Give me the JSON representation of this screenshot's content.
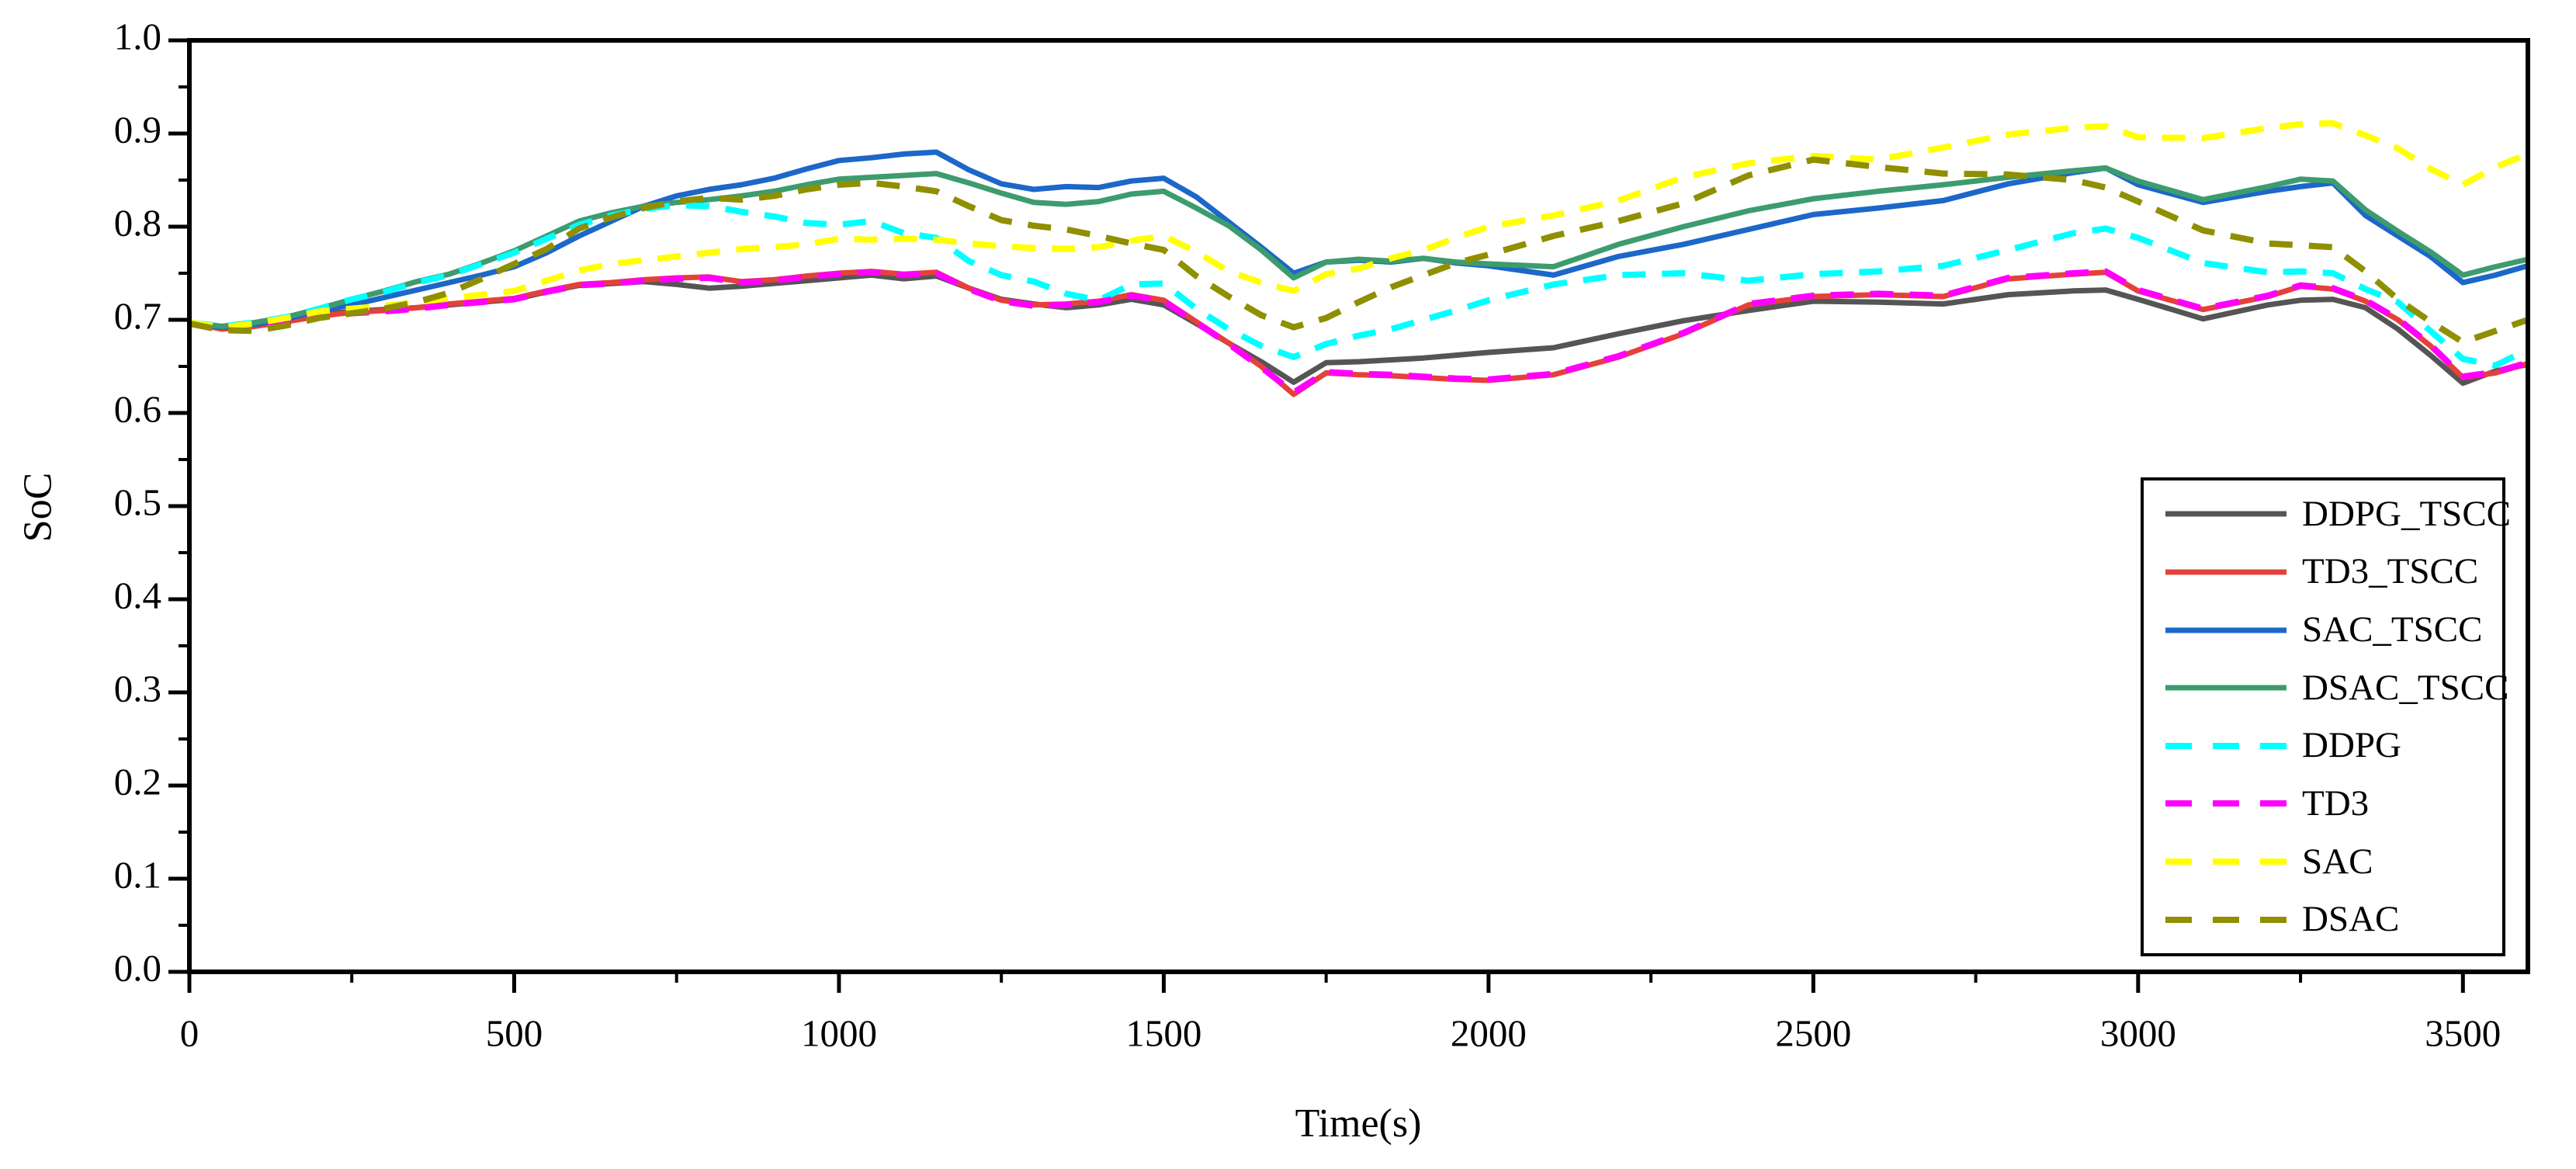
{
  "figure": {
    "background_color": "#ffffff"
  },
  "chart_data": {
    "type": "line",
    "title": "",
    "xlabel": "Time(s)",
    "ylabel": "SoC",
    "xlim": [
      0,
      3600
    ],
    "ylim": [
      0.0,
      1.0
    ],
    "grid": false,
    "legend_position": "lower right",
    "x_major_ticks": [
      0,
      500,
      1000,
      1500,
      2000,
      2500,
      3000,
      3500
    ],
    "x_tick_labels": [
      "0",
      "500",
      "1000",
      "1500",
      "2000",
      "2500",
      "3000",
      "3500"
    ],
    "x_minor_ticks": [
      250,
      750,
      1250,
      1750,
      2250,
      2750,
      3250
    ],
    "y_major_ticks": [
      0.0,
      0.1,
      0.2,
      0.3,
      0.4,
      0.5,
      0.6,
      0.7,
      0.8,
      0.9,
      1.0
    ],
    "y_tick_labels": [
      "0.0",
      "0.1",
      "0.2",
      "0.3",
      "0.4",
      "0.5",
      "0.6",
      "0.7",
      "0.8",
      "0.9",
      "1.0"
    ],
    "y_minor_ticks": [
      0.05,
      0.15,
      0.25,
      0.35,
      0.45,
      0.55,
      0.65,
      0.75,
      0.85,
      0.95
    ],
    "x": [
      0,
      50,
      100,
      150,
      200,
      250,
      300,
      350,
      400,
      450,
      500,
      550,
      600,
      650,
      700,
      750,
      800,
      850,
      900,
      950,
      1000,
      1050,
      1100,
      1150,
      1200,
      1250,
      1300,
      1350,
      1400,
      1450,
      1500,
      1550,
      1600,
      1650,
      1700,
      1750,
      1800,
      1850,
      1900,
      1950,
      2000,
      2100,
      2200,
      2300,
      2400,
      2500,
      2600,
      2700,
      2800,
      2900,
      2950,
      3000,
      3100,
      3200,
      3250,
      3300,
      3350,
      3400,
      3450,
      3500,
      3550,
      3600
    ],
    "series": [
      {
        "name": "DDPG_TSCC",
        "color": "#555555",
        "style": "solid",
        "values": [
          0.697,
          0.691,
          0.694,
          0.699,
          0.706,
          0.709,
          0.711,
          0.713,
          0.716,
          0.719,
          0.722,
          0.73,
          0.737,
          0.739,
          0.741,
          0.738,
          0.734,
          0.736,
          0.739,
          0.742,
          0.745,
          0.748,
          0.744,
          0.747,
          0.734,
          0.722,
          0.717,
          0.713,
          0.716,
          0.722,
          0.716,
          0.696,
          0.675,
          0.655,
          0.633,
          0.654,
          0.655,
          0.657,
          0.659,
          0.662,
          0.665,
          0.67,
          0.685,
          0.699,
          0.71,
          0.72,
          0.719,
          0.717,
          0.727,
          0.731,
          0.732,
          0.722,
          0.701,
          0.716,
          0.721,
          0.722,
          0.713,
          0.69,
          0.662,
          0.632,
          0.645,
          0.652
        ]
      },
      {
        "name": "TD3_TSCC",
        "color": "#e5403c",
        "style": "solid",
        "values": [
          0.697,
          0.69,
          0.693,
          0.698,
          0.704,
          0.708,
          0.71,
          0.713,
          0.717,
          0.72,
          0.723,
          0.731,
          0.738,
          0.74,
          0.743,
          0.745,
          0.746,
          0.741,
          0.743,
          0.747,
          0.75,
          0.752,
          0.749,
          0.751,
          0.734,
          0.721,
          0.716,
          0.717,
          0.72,
          0.727,
          0.721,
          0.698,
          0.675,
          0.65,
          0.62,
          0.643,
          0.641,
          0.64,
          0.638,
          0.636,
          0.635,
          0.641,
          0.66,
          0.685,
          0.716,
          0.725,
          0.727,
          0.725,
          0.744,
          0.749,
          0.751,
          0.731,
          0.711,
          0.725,
          0.736,
          0.733,
          0.72,
          0.7,
          0.672,
          0.638,
          0.643,
          0.653
        ]
      },
      {
        "name": "SAC_TSCC",
        "color": "#1c67c9",
        "style": "solid",
        "values": [
          0.697,
          0.692,
          0.695,
          0.701,
          0.71,
          0.716,
          0.724,
          0.732,
          0.74,
          0.748,
          0.757,
          0.772,
          0.79,
          0.806,
          0.822,
          0.833,
          0.84,
          0.845,
          0.852,
          0.862,
          0.871,
          0.874,
          0.878,
          0.88,
          0.861,
          0.846,
          0.84,
          0.843,
          0.842,
          0.849,
          0.852,
          0.832,
          0.805,
          0.778,
          0.75,
          0.762,
          0.764,
          0.762,
          0.766,
          0.761,
          0.758,
          0.748,
          0.768,
          0.781,
          0.797,
          0.813,
          0.82,
          0.828,
          0.846,
          0.858,
          0.863,
          0.845,
          0.826,
          0.838,
          0.843,
          0.847,
          0.812,
          0.79,
          0.768,
          0.74,
          0.748,
          0.758
        ]
      },
      {
        "name": "DSAC_TSCC",
        "color": "#3d9c6e",
        "style": "solid",
        "values": [
          0.697,
          0.693,
          0.697,
          0.703,
          0.712,
          0.722,
          0.731,
          0.741,
          0.749,
          0.761,
          0.774,
          0.79,
          0.806,
          0.815,
          0.822,
          0.826,
          0.829,
          0.833,
          0.838,
          0.845,
          0.851,
          0.853,
          0.855,
          0.857,
          0.847,
          0.836,
          0.826,
          0.824,
          0.827,
          0.835,
          0.838,
          0.82,
          0.801,
          0.775,
          0.745,
          0.762,
          0.765,
          0.763,
          0.766,
          0.762,
          0.76,
          0.757,
          0.781,
          0.8,
          0.817,
          0.83,
          0.838,
          0.845,
          0.853,
          0.86,
          0.863,
          0.849,
          0.829,
          0.843,
          0.851,
          0.849,
          0.818,
          0.795,
          0.773,
          0.748,
          0.757,
          0.765
        ]
      },
      {
        "name": "DDPG",
        "color": "#00ffff",
        "style": "dashed",
        "values": [
          0.697,
          0.693,
          0.697,
          0.703,
          0.712,
          0.722,
          0.73,
          0.74,
          0.748,
          0.76,
          0.772,
          0.787,
          0.802,
          0.812,
          0.819,
          0.823,
          0.822,
          0.816,
          0.811,
          0.804,
          0.802,
          0.806,
          0.793,
          0.788,
          0.763,
          0.748,
          0.741,
          0.728,
          0.721,
          0.738,
          0.739,
          0.712,
          0.69,
          0.672,
          0.66,
          0.674,
          0.683,
          0.69,
          0.7,
          0.71,
          0.721,
          0.738,
          0.748,
          0.75,
          0.742,
          0.749,
          0.752,
          0.758,
          0.775,
          0.793,
          0.798,
          0.788,
          0.761,
          0.751,
          0.752,
          0.75,
          0.733,
          0.719,
          0.688,
          0.658,
          0.651,
          0.668
        ]
      },
      {
        "name": "TD3",
        "color": "#ff00ff",
        "style": "dashed",
        "values": [
          0.696,
          0.689,
          0.692,
          0.697,
          0.703,
          0.707,
          0.709,
          0.712,
          0.716,
          0.719,
          0.722,
          0.73,
          0.737,
          0.739,
          0.742,
          0.744,
          0.745,
          0.74,
          0.742,
          0.746,
          0.749,
          0.751,
          0.748,
          0.75,
          0.733,
          0.72,
          0.715,
          0.716,
          0.719,
          0.726,
          0.72,
          0.697,
          0.674,
          0.649,
          0.622,
          0.644,
          0.642,
          0.641,
          0.639,
          0.637,
          0.636,
          0.642,
          0.661,
          0.686,
          0.717,
          0.726,
          0.728,
          0.726,
          0.745,
          0.75,
          0.752,
          0.732,
          0.712,
          0.726,
          0.737,
          0.734,
          0.721,
          0.701,
          0.673,
          0.639,
          0.644,
          0.654
        ]
      },
      {
        "name": "SAC",
        "color": "#ffff00",
        "style": "dashed",
        "values": [
          0.697,
          0.692,
          0.696,
          0.702,
          0.709,
          0.712,
          0.715,
          0.719,
          0.723,
          0.727,
          0.731,
          0.742,
          0.753,
          0.76,
          0.764,
          0.768,
          0.772,
          0.776,
          0.778,
          0.781,
          0.787,
          0.786,
          0.787,
          0.786,
          0.782,
          0.779,
          0.777,
          0.776,
          0.778,
          0.785,
          0.79,
          0.773,
          0.752,
          0.74,
          0.731,
          0.749,
          0.755,
          0.766,
          0.775,
          0.788,
          0.8,
          0.812,
          0.828,
          0.853,
          0.868,
          0.876,
          0.872,
          0.885,
          0.899,
          0.906,
          0.908,
          0.896,
          0.895,
          0.906,
          0.91,
          0.911,
          0.898,
          0.884,
          0.862,
          0.845,
          0.864,
          0.878
        ]
      },
      {
        "name": "DSAC",
        "color": "#8f8f00",
        "style": "dashed",
        "values": [
          0.696,
          0.689,
          0.688,
          0.694,
          0.702,
          0.707,
          0.712,
          0.719,
          0.729,
          0.744,
          0.76,
          0.776,
          0.798,
          0.81,
          0.82,
          0.827,
          0.831,
          0.829,
          0.833,
          0.84,
          0.845,
          0.847,
          0.843,
          0.838,
          0.822,
          0.807,
          0.801,
          0.797,
          0.79,
          0.782,
          0.775,
          0.747,
          0.725,
          0.705,
          0.692,
          0.702,
          0.719,
          0.735,
          0.748,
          0.761,
          0.77,
          0.79,
          0.806,
          0.825,
          0.855,
          0.872,
          0.864,
          0.857,
          0.856,
          0.85,
          0.842,
          0.827,
          0.796,
          0.782,
          0.78,
          0.778,
          0.752,
          0.722,
          0.698,
          0.676,
          0.688,
          0.7
        ]
      }
    ]
  }
}
